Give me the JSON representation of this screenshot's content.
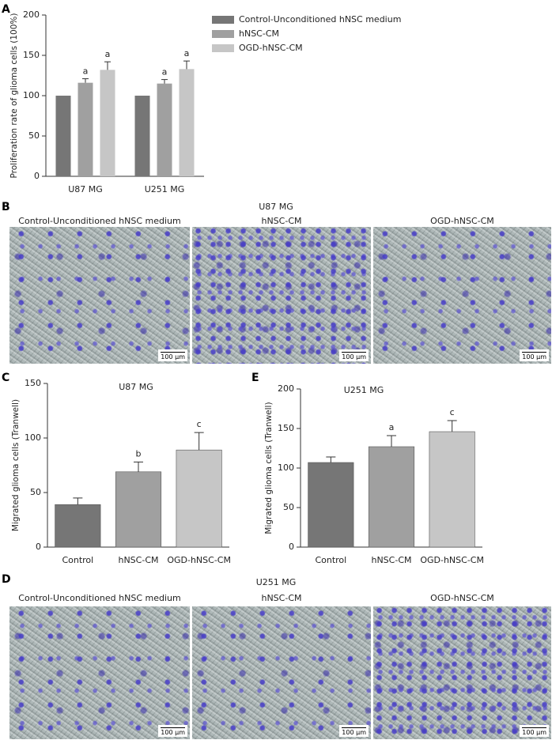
{
  "panel_labels": [
    "A",
    "B",
    "C",
    "D",
    "E"
  ],
  "chart_data": [
    {
      "type": "grouped_bar",
      "ylabel": "Proliferation rate of glioma cells (100%)",
      "categories": [
        "U87 MG",
        "U251 MG"
      ],
      "series": [
        {
          "name": "Control-Unconditioned hNSC medium",
          "color": "#767676",
          "values": [
            100,
            100
          ]
        },
        {
          "name": "hNSC-CM",
          "color": "#a0a0a0",
          "values": [
            116,
            115
          ],
          "errors": [
            5,
            5
          ],
          "annotations": [
            "a",
            "a"
          ]
        },
        {
          "name": "OGD-hNSC-CM",
          "color": "#c6c6c6",
          "values": [
            132,
            133
          ],
          "errors": [
            10,
            10
          ],
          "annotations": [
            "a",
            "a"
          ]
        }
      ],
      "ylim": [
        0,
        200
      ],
      "yticks": [
        0,
        50,
        100,
        150,
        200
      ],
      "legend": "right"
    },
    {
      "type": "bar",
      "title": "U87 MG",
      "ylabel": "Migrated glioma cells (Tranwell)",
      "categories": [
        "Control",
        "hNSC-CM",
        "OGD-hNSC-CM"
      ],
      "values": [
        39,
        69,
        89
      ],
      "errors": [
        6,
        9,
        16
      ],
      "annotations": [
        null,
        "b",
        "c"
      ],
      "colors": [
        "#767676",
        "#a0a0a0",
        "#c6c6c6"
      ],
      "ylim": [
        0,
        150
      ],
      "yticks": [
        0,
        50,
        100,
        150
      ]
    },
    {
      "type": "bar",
      "title": "U251 MG",
      "ylabel": "Migrated glioma cells (Tranwell)",
      "categories": [
        "Control",
        "hNSC-CM",
        "OGD-hNSC-CM"
      ],
      "values": [
        107,
        127,
        146
      ],
      "errors": [
        7,
        14,
        14
      ],
      "annotations": [
        null,
        "a",
        "c"
      ],
      "colors": [
        "#767676",
        "#a0a0a0",
        "#c6c6c6"
      ],
      "ylim": [
        0,
        200
      ],
      "yticks": [
        0,
        50,
        100,
        150,
        200
      ]
    }
  ],
  "micrographs": [
    {
      "title": "U87 MG",
      "captions": [
        "Control-Unconditioned hNSC medium",
        "hNSC-CM",
        "OGD-hNSC-CM"
      ],
      "scale_bars": [
        "100 μm",
        "100 μm",
        "100 μm"
      ]
    },
    {
      "title": "U251 MG",
      "captions": [
        "Control-Unconditioned hNSC medium",
        "hNSC-CM",
        "OGD-hNSC-CM"
      ],
      "scale_bars": [
        "100 μm",
        "100 μm",
        "100 μm"
      ]
    }
  ]
}
